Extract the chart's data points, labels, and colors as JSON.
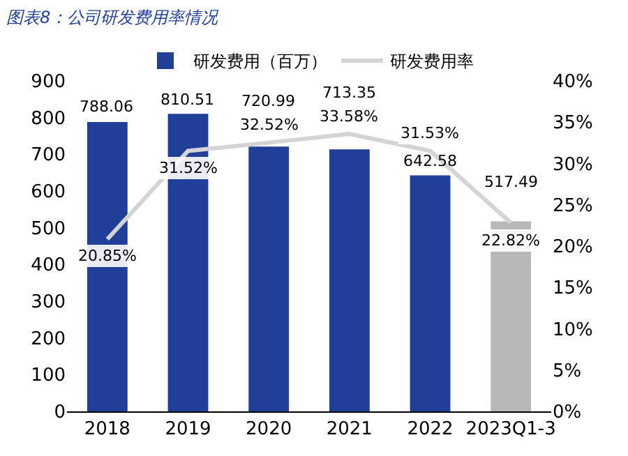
{
  "chart_data": {
    "type": "bar",
    "title": "图表8：公司研发费用率情况",
    "categories": [
      "2018",
      "2019",
      "2020",
      "2021",
      "2022",
      "2023Q1-3"
    ],
    "series": [
      {
        "name": "研发费用（百万）",
        "colors": [
          "#1f3f99",
          "#1f3f99",
          "#1f3f99",
          "#1f3f99",
          "#1f3f99",
          "#b8b8b8"
        ],
        "values": [
          788.06,
          810.51,
          720.99,
          713.35,
          642.58,
          517.49
        ]
      },
      {
        "name": "研发费用率",
        "type": "line",
        "axis": "y2",
        "color": "#d4d4d4",
        "values": [
          20.85,
          31.52,
          32.52,
          33.58,
          31.53,
          22.82
        ],
        "value_labels": [
          "20.85%",
          "31.52%",
          "32.52%",
          "33.58%",
          "31.53%",
          "22.82%"
        ]
      }
    ],
    "data_labels": true,
    "ylim": [
      0,
      900
    ],
    "yticks": [
      0,
      100,
      200,
      300,
      400,
      500,
      600,
      700,
      800,
      900
    ],
    "y2lim": [
      0,
      40
    ],
    "y2ticks": [
      {
        "value": 0,
        "label": "0%"
      },
      {
        "value": 5,
        "label": "5%"
      },
      {
        "value": 10,
        "label": "10%"
      },
      {
        "value": 15,
        "label": "15%"
      },
      {
        "value": 20,
        "label": "20%"
      },
      {
        "value": 25,
        "label": "25%"
      },
      {
        "value": 30,
        "label": "30%"
      },
      {
        "value": 35,
        "label": "35%"
      },
      {
        "value": 40,
        "label": "40%"
      }
    ],
    "legend": "top",
    "marker": "none",
    "line_style": "solid"
  }
}
